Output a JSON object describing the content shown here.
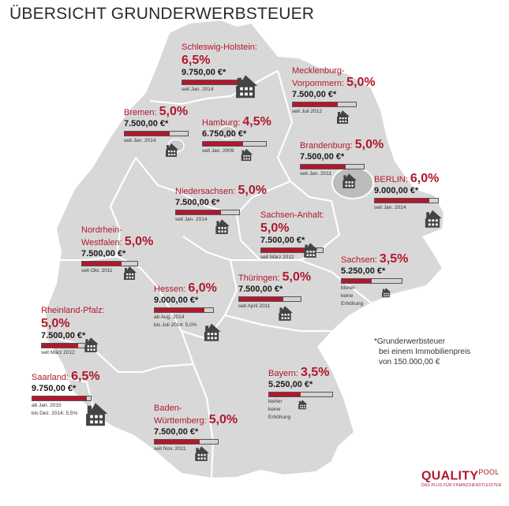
{
  "title": "ÜBERSICHT GRUNDERWERBSTEUER",
  "footnote": {
    "line1": "*Grunderwerbsteuer",
    "line2": "bei einem Immobilienpreis",
    "line3": "von 150.000,00 €"
  },
  "logo": {
    "brand": "QUALITY",
    "pool": "POOL",
    "tagline": "DAS PLUS FÜR FINANZDIENSTLEISTER"
  },
  "chart_data": {
    "type": "bar",
    "title": "ÜBERSICHT GRUNDERWERBSTEUER",
    "categories": [
      "Schleswig-Holstein",
      "Mecklenburg-Vorpommern",
      "Bremen",
      "Hamburg",
      "Brandenburg",
      "BERLIN",
      "Niedersachsen",
      "Sachsen-Anhalt",
      "Nordrhein-Westfalen",
      "Sachsen",
      "Thüringen",
      "Hessen",
      "Rheinland-Pfalz",
      "Bayern",
      "Saarland",
      "Baden-Württemberg"
    ],
    "states": [
      {
        "key": "sh",
        "name": "Schleswig-Holstein",
        "rate": "6,5%",
        "amount": "9.750,00 €*",
        "value": 9750,
        "since": [
          "seit Jan. 2014"
        ]
      },
      {
        "key": "mv",
        "name": "Mecklenburg-Vorpommern",
        "name_lines": [
          "Mecklenburg-",
          "Vorpommern:"
        ],
        "rate": "5,0%",
        "amount": "7.500,00 €*",
        "value": 7500,
        "since": [
          "seit Juli 2012"
        ]
      },
      {
        "key": "hb",
        "name": "Bremen",
        "rate": "5,0%",
        "amount": "7.500,00 €*",
        "value": 7500,
        "since": [
          "seit Jan. 2014"
        ]
      },
      {
        "key": "hh",
        "name": "Hamburg",
        "rate": "4,5%",
        "amount": "6.750,00 €*",
        "value": 6750,
        "since": [
          "seit Jan. 2009"
        ]
      },
      {
        "key": "bb",
        "name": "Brandenburg",
        "rate": "5,0%",
        "amount": "7.500,00 €*",
        "value": 7500,
        "since": [
          "seit Jan. 2011"
        ]
      },
      {
        "key": "be",
        "name": "BERLIN",
        "rate": "6,0%",
        "amount": "9.000,00 €*",
        "value": 9000,
        "since": [
          "seit Jan. 2014"
        ]
      },
      {
        "key": "ni",
        "name": "Niedersachsen",
        "rate": "5,0%",
        "amount": "7.500,00 €*",
        "value": 7500,
        "since": [
          "seit Jan. 2014"
        ]
      },
      {
        "key": "st",
        "name": "Sachsen-Anhalt",
        "rate": "5,0%",
        "amount": "7.500,00 €*",
        "value": 7500,
        "since": [
          "seit März 2012"
        ]
      },
      {
        "key": "nw",
        "name": "Nordrhein-Westfalen",
        "name_lines": [
          "Nordrhein-",
          "Westfalen:"
        ],
        "rate": "5,0%",
        "amount": "7.500,00 €*",
        "value": 7500,
        "since": [
          "seit Okt. 2011"
        ]
      },
      {
        "key": "sn",
        "name": "Sachsen",
        "rate": "3,5%",
        "amount": "5.250,00 €*",
        "value": 5250,
        "since": [
          "bisher",
          "keine",
          "Erhöhung"
        ]
      },
      {
        "key": "th",
        "name": "Thüringen",
        "rate": "5,0%",
        "amount": "7.500,00 €*",
        "value": 7500,
        "since": [
          "seit April 2011"
        ]
      },
      {
        "key": "he",
        "name": "Hessen",
        "rate": "6,0%",
        "amount": "9.000,00 €*",
        "value": 9000,
        "since": [
          "ab Aug. 2014",
          "bis Juli 2014: 5,0%"
        ]
      },
      {
        "key": "rp",
        "name": "Rheinland-Pfalz",
        "rate": "5,0%",
        "amount": "7.500,00 €*",
        "value": 7500,
        "since": [
          "seit März 2012"
        ]
      },
      {
        "key": "by",
        "name": "Bayern",
        "rate": "3,5%",
        "amount": "5.250,00 €*",
        "value": 5250,
        "since": [
          "bisher",
          "keine",
          "Erhöhung"
        ]
      },
      {
        "key": "sl",
        "name": "Saarland",
        "rate": "6,5%",
        "amount": "9.750,00 €*",
        "value": 9750,
        "since": [
          "ab Jan. 2015",
          "bis Dez. 2014: 5,5%"
        ]
      },
      {
        "key": "bw",
        "name": "Baden-Württemberg",
        "name_lines": [
          "Baden-",
          "Württemberg:"
        ],
        "rate": "5,0%",
        "amount": "7.500,00 €*",
        "value": 7500,
        "since": [
          "seit Nov. 2011"
        ]
      }
    ],
    "bar_max": 10500,
    "colors": {
      "accent": "#b0182d",
      "bar_bg": "#d2d2d2",
      "map": "#d8d8d8",
      "border": "#ffffff",
      "house": "#444444"
    }
  }
}
